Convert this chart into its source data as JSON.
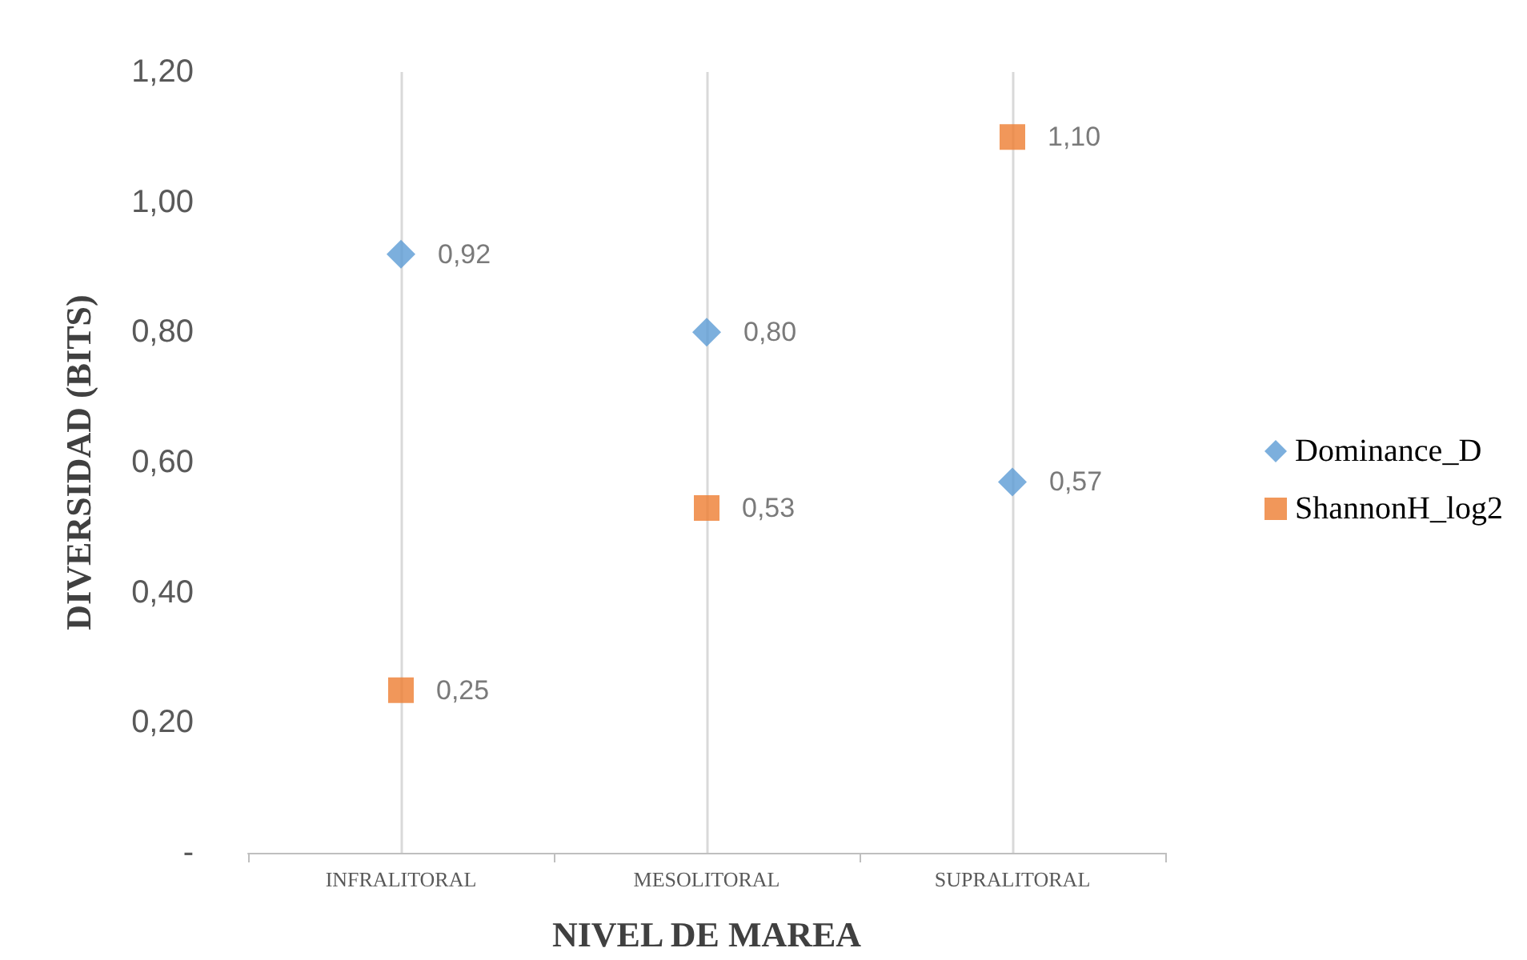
{
  "chart_data": {
    "type": "scatter",
    "xlabel": "NIVEL DE MAREA",
    "ylabel": "DIVERSIDAD (BITS)",
    "categories": [
      "INFRALITORAL",
      "MESOLITORAL",
      "SUPRALITORAL"
    ],
    "series": [
      {
        "name": "Dominance_D",
        "color": "#5b9bd5",
        "marker": "diamond",
        "values": [
          0.92,
          0.8,
          0.57
        ],
        "value_labels": [
          "0,92",
          "0,80",
          "0,57"
        ]
      },
      {
        "name": "ShannonH_log2",
        "color": "#ed7d31",
        "marker": "square",
        "values": [
          0.25,
          0.53,
          1.1
        ],
        "value_labels": [
          "0,25",
          "0,53",
          "1,10"
        ]
      }
    ],
    "ylim": [
      0,
      1.2
    ],
    "yticks": [
      {
        "value": 0,
        "label": "-"
      },
      {
        "value": 0.2,
        "label": "0,20"
      },
      {
        "value": 0.4,
        "label": "0,40"
      },
      {
        "value": 0.6,
        "label": "0,60"
      },
      {
        "value": 0.8,
        "label": "0,80"
      },
      {
        "value": 1,
        "label": "1,00"
      },
      {
        "value": 1.2,
        "label": "1,20"
      }
    ],
    "grid": "x",
    "legend": "right"
  }
}
